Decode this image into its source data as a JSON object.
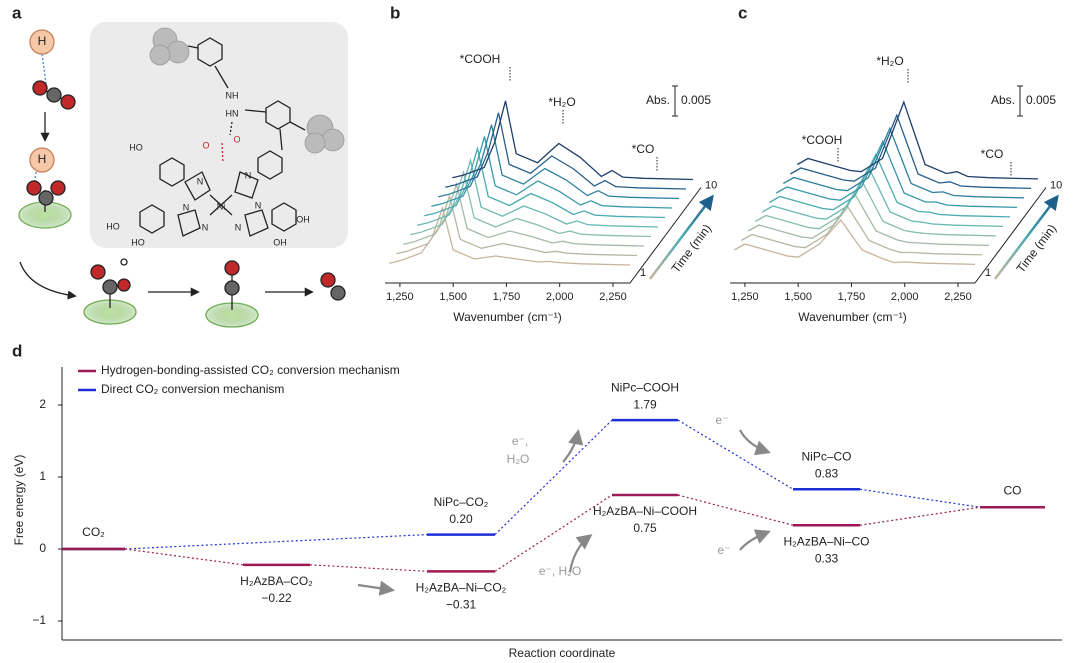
{
  "panel_a": {
    "label": "a",
    "atoms": [
      "H",
      "H",
      "NH",
      "HN",
      "O",
      "O",
      "N",
      "N",
      "Ni",
      "N",
      "N",
      "N",
      "N",
      "HO",
      "HO",
      "HO",
      "OH",
      "OH"
    ]
  },
  "chart_data": [
    {
      "type": "line",
      "panel": "b",
      "x": [
        1200,
        1250,
        1350,
        1400,
        1450,
        1500,
        1600,
        1700,
        1800,
        1900,
        1950,
        2000,
        2100,
        2330
      ],
      "xlim": [
        1180,
        2330
      ],
      "xticks": [
        {
          "value": 1250,
          "label": "1,250"
        },
        {
          "value": 1500,
          "label": "1,500"
        },
        {
          "value": 1750,
          "label": "1,750"
        },
        {
          "value": 2000,
          "label": "2,000"
        },
        {
          "value": 2250,
          "label": "2,250"
        }
      ],
      "x_label": "Wavenumber (cm⁻¹)",
      "annotations": [
        "*COOH",
        "*H₂O",
        "*CO"
      ],
      "scale_bar": {
        "label": "Abs.",
        "value": 0.005
      },
      "time_axis": {
        "label": "Time (min)",
        "start": 1,
        "end": 10
      },
      "series": [
        {
          "color": "#c8b49c",
          "values": [
            0.0008,
            0.0012,
            0.0025,
            0.005,
            0.01,
            0.003,
            0.0015,
            0.002,
            0.0015,
            0.001,
            0.0011,
            0.0009,
            0.0007,
            0.0005
          ]
        },
        {
          "color": "#b8b6a0",
          "values": [
            0.0008,
            0.0012,
            0.0025,
            0.0052,
            0.0104,
            0.0032,
            0.0017,
            0.0025,
            0.0018,
            0.001,
            0.0012,
            0.0009,
            0.0007,
            0.0005
          ]
        },
        {
          "color": "#a3baa8",
          "values": [
            0.0008,
            0.0012,
            0.0025,
            0.0054,
            0.0108,
            0.0034,
            0.0019,
            0.003,
            0.0021,
            0.001,
            0.0013,
            0.0009,
            0.0007,
            0.0005
          ]
        },
        {
          "color": "#88bdb0",
          "values": [
            0.0008,
            0.0012,
            0.0025,
            0.0056,
            0.0112,
            0.0036,
            0.0021,
            0.0035,
            0.0024,
            0.001,
            0.0014,
            0.0009,
            0.0007,
            0.0005
          ]
        },
        {
          "color": "#68b8b4",
          "values": [
            0.0008,
            0.0012,
            0.0025,
            0.0058,
            0.0116,
            0.0038,
            0.0023,
            0.004,
            0.0027,
            0.001,
            0.0015,
            0.0009,
            0.0007,
            0.0005
          ]
        },
        {
          "color": "#4aabb2",
          "values": [
            0.0008,
            0.0012,
            0.0025,
            0.006,
            0.012,
            0.004,
            0.0025,
            0.0045,
            0.003,
            0.001,
            0.0016,
            0.0009,
            0.0007,
            0.0005
          ]
        },
        {
          "color": "#3898aa",
          "values": [
            0.0008,
            0.0012,
            0.0025,
            0.0062,
            0.0124,
            0.0042,
            0.0027,
            0.005,
            0.0033,
            0.001,
            0.0017,
            0.0009,
            0.0007,
            0.0005
          ]
        },
        {
          "color": "#2e80a0",
          "values": [
            0.0008,
            0.0012,
            0.0025,
            0.0064,
            0.0128,
            0.0044,
            0.0029,
            0.0055,
            0.0036,
            0.001,
            0.0018,
            0.0009,
            0.0007,
            0.0005
          ]
        },
        {
          "color": "#275f8c",
          "values": [
            0.0008,
            0.0012,
            0.0025,
            0.0066,
            0.0132,
            0.0046,
            0.0031,
            0.006,
            0.0039,
            0.001,
            0.0019,
            0.0009,
            0.0007,
            0.0005
          ]
        },
        {
          "color": "#1e3f6b",
          "values": [
            0.0008,
            0.0012,
            0.0025,
            0.0068,
            0.0136,
            0.0048,
            0.0033,
            0.0065,
            0.0042,
            0.001,
            0.002,
            0.0009,
            0.0007,
            0.0005
          ]
        }
      ]
    },
    {
      "type": "line",
      "panel": "c",
      "x": [
        1200,
        1250,
        1350,
        1400,
        1450,
        1500,
        1600,
        1700,
        1800,
        1900,
        1950,
        2000,
        2100,
        2330
      ],
      "xlim": [
        1180,
        2330
      ],
      "xticks": [
        {
          "value": 1250,
          "label": "1,250"
        },
        {
          "value": 1500,
          "label": "1,500"
        },
        {
          "value": 1750,
          "label": "1,750"
        },
        {
          "value": 2000,
          "label": "2,000"
        },
        {
          "value": 2250,
          "label": "2,250"
        }
      ],
      "x_label": "Wavenumber (cm⁻¹)",
      "annotations": [
        "*H₂O",
        "*COOH",
        "*CO"
      ],
      "scale_bar": {
        "label": "Abs.",
        "value": 0.005
      },
      "time_axis": {
        "label": "Time (min)",
        "start": 1,
        "end": 10
      },
      "series": [
        {
          "color": "#c8b49c",
          "values": [
            0.003,
            0.004,
            0.003,
            0.0025,
            0.002,
            0.0018,
            0.004,
            0.008,
            0.003,
            0.0015,
            0.0009,
            0.001,
            0.0008,
            0.0006
          ]
        },
        {
          "color": "#b8b6a0",
          "values": [
            0.003,
            0.004,
            0.003,
            0.0025,
            0.002,
            0.0018,
            0.004,
            0.0086,
            0.003,
            0.0015,
            0.001,
            0.001,
            0.0008,
            0.0006
          ]
        },
        {
          "color": "#a3baa8",
          "values": [
            0.003,
            0.004,
            0.003,
            0.0025,
            0.002,
            0.0018,
            0.004,
            0.0092,
            0.003,
            0.0015,
            0.0011,
            0.001,
            0.0008,
            0.0006
          ]
        },
        {
          "color": "#88bdb0",
          "values": [
            0.003,
            0.004,
            0.003,
            0.0025,
            0.002,
            0.0018,
            0.004,
            0.0098,
            0.003,
            0.0015,
            0.0012,
            0.001,
            0.0008,
            0.0006
          ]
        },
        {
          "color": "#68b8b4",
          "values": [
            0.003,
            0.004,
            0.003,
            0.0025,
            0.002,
            0.0018,
            0.004,
            0.0104,
            0.003,
            0.0015,
            0.0013,
            0.001,
            0.0008,
            0.0006
          ]
        },
        {
          "color": "#4aabb2",
          "values": [
            0.003,
            0.004,
            0.003,
            0.0025,
            0.002,
            0.0018,
            0.004,
            0.011,
            0.003,
            0.0015,
            0.0014,
            0.001,
            0.0008,
            0.0006
          ]
        },
        {
          "color": "#3898aa",
          "values": [
            0.003,
            0.004,
            0.003,
            0.0025,
            0.002,
            0.0018,
            0.004,
            0.0116,
            0.003,
            0.0015,
            0.0015,
            0.001,
            0.0008,
            0.0006
          ]
        },
        {
          "color": "#2e80a0",
          "values": [
            0.003,
            0.004,
            0.003,
            0.0025,
            0.002,
            0.0018,
            0.004,
            0.0122,
            0.003,
            0.0015,
            0.0016,
            0.001,
            0.0008,
            0.0006
          ]
        },
        {
          "color": "#275f8c",
          "values": [
            0.003,
            0.004,
            0.003,
            0.0025,
            0.002,
            0.0018,
            0.004,
            0.0128,
            0.003,
            0.0015,
            0.0017,
            0.001,
            0.0008,
            0.0006
          ]
        },
        {
          "color": "#1e3f6b",
          "values": [
            0.003,
            0.004,
            0.003,
            0.0025,
            0.002,
            0.0018,
            0.004,
            0.0134,
            0.003,
            0.0015,
            0.0018,
            0.001,
            0.0008,
            0.0006
          ]
        }
      ]
    },
    {
      "type": "level",
      "panel": "d",
      "y_label": "Free energy (eV)",
      "x_label": "Reaction coordinate",
      "ylim": [
        -1.25,
        2.5
      ],
      "yticks": [
        {
          "value": -1,
          "label": "−1"
        },
        0,
        1,
        2
      ],
      "series": [
        {
          "name": "Hydrogen-bonding-assisted CO₂ conversion mechanism",
          "color": "#9c1a55",
          "values": [
            0,
            -0.22,
            -0.31,
            0.75,
            0.33,
            0.58
          ],
          "level_names": [
            "CO₂",
            "H₂AzBA–CO₂",
            "H₂AzBA–Ni–CO₂",
            "H₂AzBA–Ni–COOH",
            "H₂AzBA–Ni–CO",
            "CO"
          ],
          "value_labels": [
            null,
            "−0.22",
            "−0.31",
            "0.75",
            "0.33",
            null
          ]
        },
        {
          "name": "Direct CO₂ conversion mechanism",
          "color": "#1f2fd6",
          "values": [
            0,
            null,
            0.2,
            1.79,
            0.83,
            0.58
          ],
          "level_names": [
            null,
            null,
            "NiPc–CO₂",
            "NiPc–COOH",
            "NiPc–CO",
            null
          ],
          "value_labels": [
            null,
            null,
            "0.20",
            "1.79",
            "0.83",
            null
          ]
        }
      ],
      "annotations": [
        [
          "e⁻,",
          "H₂O"
        ],
        [
          "e⁻"
        ],
        [
          "e⁻, H₂O"
        ],
        [
          "e⁻"
        ]
      ]
    }
  ]
}
